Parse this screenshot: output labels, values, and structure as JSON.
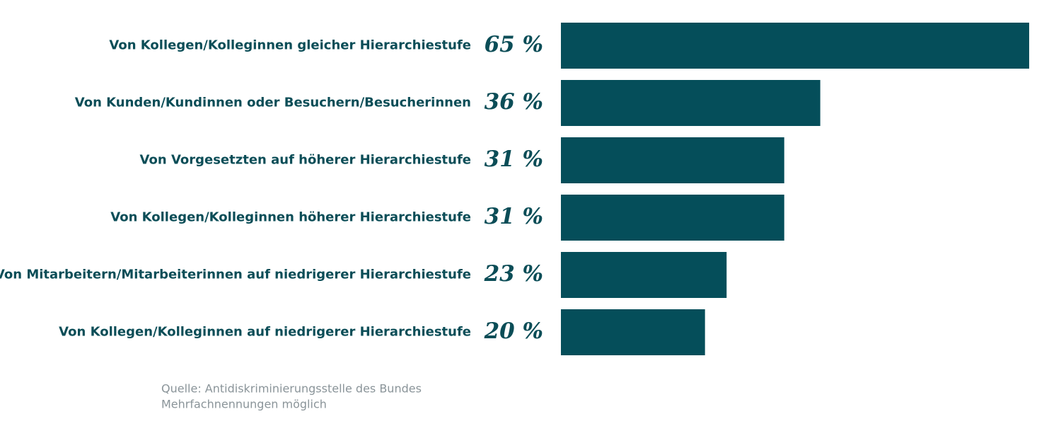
{
  "chart_data": {
    "type": "hbar",
    "categories": [
      "Von Kollegen/Kolleginnen gleicher Hierarchiestufe",
      "Von Kunden/Kundinnen oder Besuchern/Besucherinnen",
      "Von Vorgesetzten auf höherer Hierarchiestufe",
      "Von Kollegen/Kolleginnen höherer Hierarchiestufe",
      "Von Mitarbeitern/Mitarbeiterinnen auf niedrigerer Hierarchiestufe",
      "Von Kollegen/Kolleginnen auf niedrigerer Hierarchiestufe"
    ],
    "values": [
      65,
      36,
      31,
      31,
      23,
      20
    ],
    "value_labels": [
      "65 %",
      "36 %",
      "31 %",
      "31 %",
      "23 %",
      "20 %"
    ],
    "color": "#054e5a",
    "notes": [
      "Quelle: Antidiskriminierungsstelle des Bundes",
      "Mehrfachnennungen möglich"
    ]
  }
}
